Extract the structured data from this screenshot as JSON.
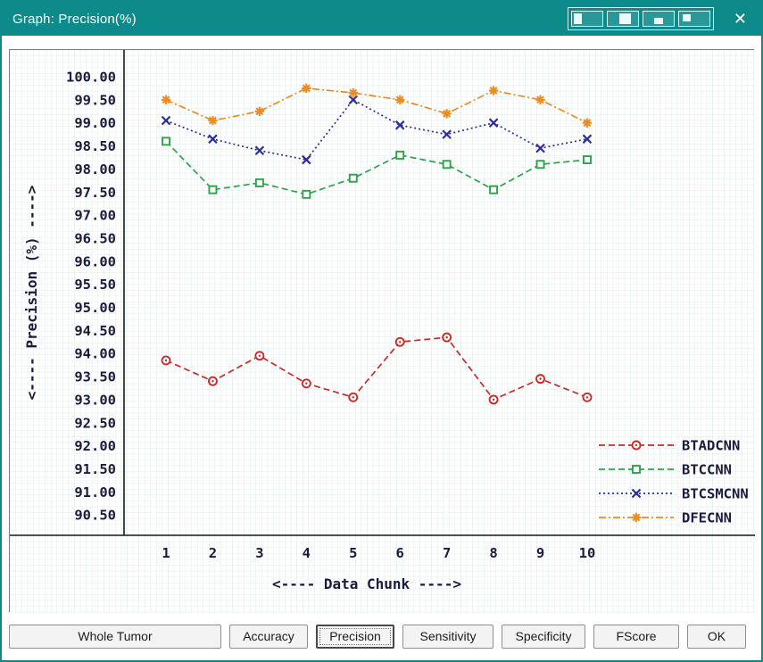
{
  "titlebar": {
    "title": "Graph: Precision(%)",
    "close_glyph": "✕",
    "layout_icons": [
      "pane-left-icon",
      "pane-split-icon",
      "pane-bottom-icon",
      "pane-small-icon"
    ]
  },
  "chart_data": {
    "type": "line",
    "title": "Graph: Precision(%)",
    "xlabel": "<---- Data Chunk ---->",
    "ylabel": "<---- Precision (%) ---->",
    "x": [
      1,
      2,
      3,
      4,
      5,
      6,
      7,
      8,
      9,
      10
    ],
    "xticks": [
      1,
      2,
      3,
      4,
      5,
      6,
      7,
      8,
      9,
      10
    ],
    "ytick_min": 90.5,
    "ytick_max": 100.0,
    "ytick_step": 0.5,
    "ylim": [
      90.05,
      100.6
    ],
    "grid": true,
    "legend_position": "right-middle",
    "series": [
      {
        "name": "BTADCNN",
        "color": "#cc2a27",
        "marker": "circle",
        "dash": "dashed",
        "values": [
          93.85,
          93.4,
          93.95,
          93.35,
          93.05,
          94.25,
          94.35,
          93.0,
          93.45,
          93.05
        ]
      },
      {
        "name": "BTCCNN",
        "color": "#2ca44a",
        "marker": "square",
        "dash": "dashed",
        "values": [
          98.6,
          97.55,
          97.7,
          97.45,
          97.8,
          98.3,
          98.1,
          97.55,
          98.1,
          98.2
        ]
      },
      {
        "name": "BTCSMCNN",
        "color": "#2b2f9e",
        "marker": "x",
        "dash": "dotted",
        "values": [
          99.05,
          98.65,
          98.4,
          98.2,
          99.5,
          98.95,
          98.75,
          99.0,
          98.45,
          98.65
        ]
      },
      {
        "name": "DFECNN",
        "color": "#ec8c22",
        "marker": "star",
        "dash": "dashdot",
        "values": [
          99.5,
          99.05,
          99.25,
          99.75,
          99.65,
          99.5,
          99.2,
          99.7,
          99.5,
          99.0
        ]
      }
    ],
    "colors": {
      "grid": "#dcebe9",
      "axis": "#1a1a1a",
      "text": "#1b1b40",
      "titlebar_accent": "#0d8a8a"
    }
  },
  "buttons": [
    {
      "label": "Whole Tumor",
      "selected": false
    },
    {
      "label": "Accuracy",
      "selected": false
    },
    {
      "label": "Precision",
      "selected": true
    },
    {
      "label": "Sensitivity",
      "selected": false
    },
    {
      "label": "Specificity",
      "selected": false
    },
    {
      "label": "FScore",
      "selected": false
    },
    {
      "label": "OK",
      "selected": false
    }
  ]
}
